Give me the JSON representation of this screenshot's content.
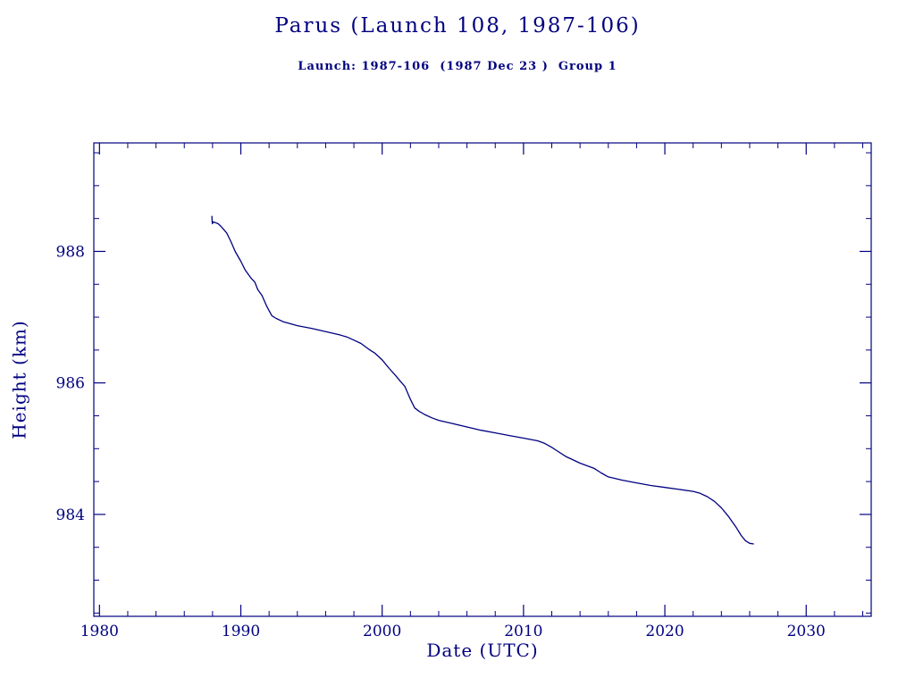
{
  "figure": {
    "accent_color": "#000080",
    "background_color": "#ffffff"
  },
  "chart_data": {
    "type": "line",
    "title": "Parus (Launch 108, 1987-106)",
    "subtitle": "Launch: 1987-106  (1987 Dec 23 )  Group 1",
    "xlabel": "Date (UTC)",
    "ylabel": "Height (km)",
    "xlim": [
      1979.6,
      2034.6
    ],
    "ylim": [
      982.45,
      989.65
    ],
    "x_ticks": [
      1980,
      1990,
      2000,
      2010,
      2020,
      2030
    ],
    "y_ticks": [
      984,
      986,
      988
    ],
    "x_minor_step": 2,
    "y_minor_step": 0.5,
    "grid": false,
    "legend": "none",
    "line_color": "#000080",
    "frame_color": "#000080",
    "series": [
      {
        "name": "height_km",
        "points": [
          [
            1987.95,
            988.54
          ],
          [
            1987.98,
            988.42
          ],
          [
            1988.05,
            988.45
          ],
          [
            1988.4,
            988.42
          ],
          [
            1988.6,
            988.38
          ],
          [
            1989.0,
            988.28
          ],
          [
            1989.3,
            988.15
          ],
          [
            1989.6,
            988.0
          ],
          [
            1990.0,
            987.85
          ],
          [
            1990.3,
            987.72
          ],
          [
            1990.7,
            987.6
          ],
          [
            1991.0,
            987.53
          ],
          [
            1991.2,
            987.42
          ],
          [
            1991.5,
            987.33
          ],
          [
            1991.8,
            987.18
          ],
          [
            1992.0,
            987.1
          ],
          [
            1992.2,
            987.02
          ],
          [
            1992.5,
            986.98
          ],
          [
            1993.0,
            986.93
          ],
          [
            1993.5,
            986.9
          ],
          [
            1994.0,
            986.87
          ],
          [
            1995.0,
            986.83
          ],
          [
            1996.0,
            986.78
          ],
          [
            1997.0,
            986.73
          ],
          [
            1997.5,
            986.7
          ],
          [
            1998.0,
            986.65
          ],
          [
            1998.5,
            986.6
          ],
          [
            1999.0,
            986.52
          ],
          [
            1999.5,
            986.45
          ],
          [
            2000.0,
            986.35
          ],
          [
            2000.5,
            986.22
          ],
          [
            2001.0,
            986.1
          ],
          [
            2001.3,
            986.02
          ],
          [
            2001.6,
            985.95
          ],
          [
            2002.0,
            985.75
          ],
          [
            2002.3,
            985.62
          ],
          [
            2002.6,
            985.57
          ],
          [
            2003.0,
            985.52
          ],
          [
            2003.5,
            985.47
          ],
          [
            2004.0,
            985.43
          ],
          [
            2005.0,
            985.38
          ],
          [
            2006.0,
            985.33
          ],
          [
            2007.0,
            985.28
          ],
          [
            2008.0,
            985.24
          ],
          [
            2009.0,
            985.2
          ],
          [
            2010.0,
            985.16
          ],
          [
            2011.0,
            985.12
          ],
          [
            2011.5,
            985.08
          ],
          [
            2012.0,
            985.02
          ],
          [
            2012.5,
            984.95
          ],
          [
            2013.0,
            984.88
          ],
          [
            2014.0,
            984.78
          ],
          [
            2015.0,
            984.7
          ],
          [
            2015.5,
            984.63
          ],
          [
            2016.0,
            984.57
          ],
          [
            2017.0,
            984.52
          ],
          [
            2018.0,
            984.48
          ],
          [
            2019.0,
            984.44
          ],
          [
            2020.0,
            984.41
          ],
          [
            2021.0,
            984.38
          ],
          [
            2022.0,
            984.35
          ],
          [
            2022.5,
            984.32
          ],
          [
            2023.0,
            984.27
          ],
          [
            2023.5,
            984.2
          ],
          [
            2024.0,
            984.1
          ],
          [
            2024.5,
            983.97
          ],
          [
            2025.0,
            983.82
          ],
          [
            2025.4,
            983.68
          ],
          [
            2025.7,
            983.6
          ],
          [
            2026.0,
            983.56
          ],
          [
            2026.3,
            983.55
          ]
        ]
      }
    ]
  }
}
